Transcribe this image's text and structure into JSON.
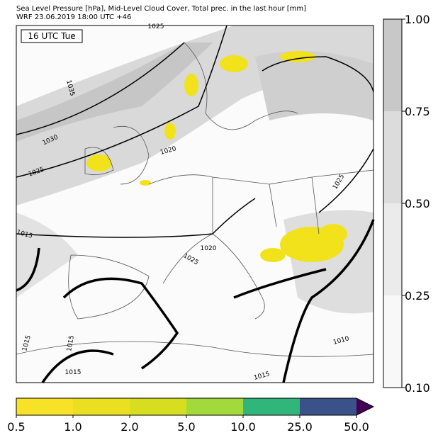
{
  "header": {
    "line1": "Sea Level Pressure [hPa], Mid-Level Cloud Cover, Total prec. in the last hour [mm]",
    "line2": "WRF 23.06.2019 18:00 UTC +46"
  },
  "map": {
    "time_label": "16 UTC Tue",
    "contour_labels": [
      "1025",
      "1035",
      "1030",
      "1025",
      "1020",
      "1015",
      "1020",
      "1025",
      "1025",
      "1015",
      "1015",
      "1015",
      "1010",
      "1015"
    ]
  },
  "cloud_colorbar": {
    "labels": [
      "1.00",
      "0.75",
      "0.50",
      "0.25",
      "0.10"
    ]
  },
  "precip_colorbar": {
    "labels": [
      "0.5",
      "1.0",
      "2.0",
      "5.0",
      "10.0",
      "25.0",
      "50.0"
    ]
  }
}
